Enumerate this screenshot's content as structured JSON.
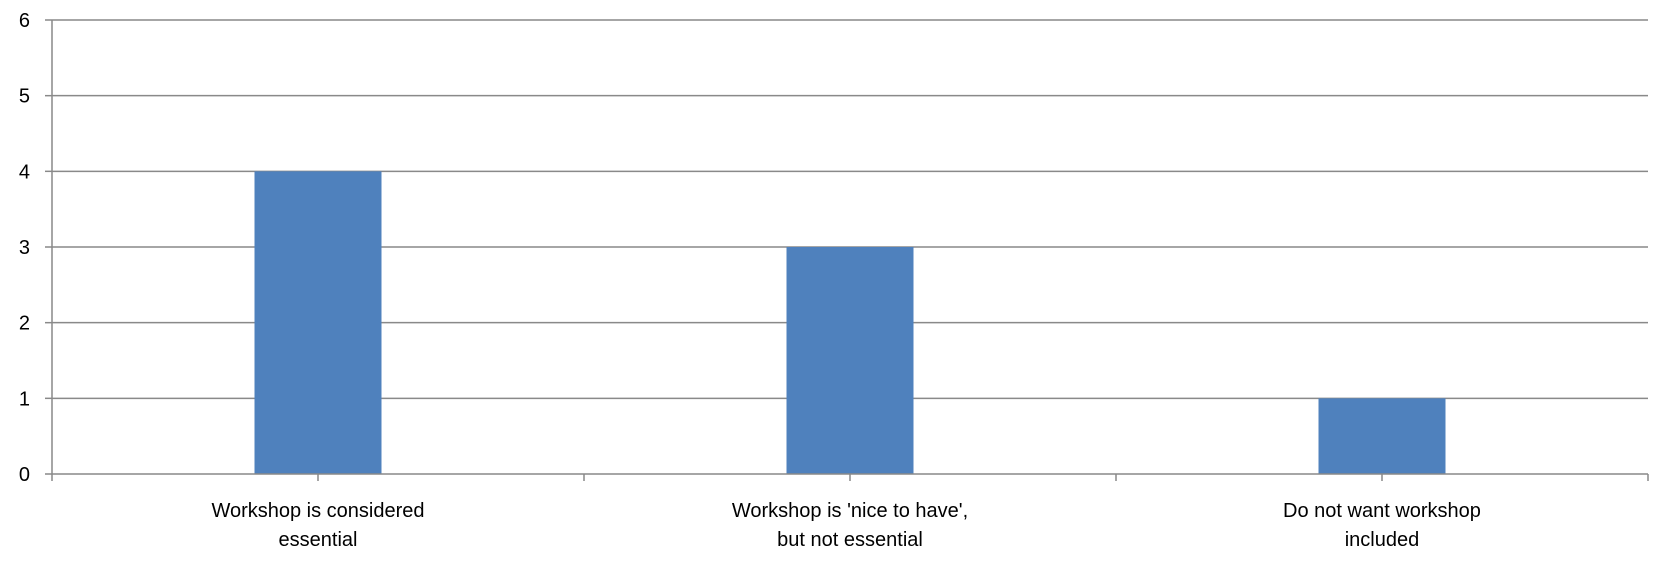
{
  "chart_data": {
    "type": "bar",
    "title": "",
    "xlabel": "",
    "ylabel": "",
    "categories": [
      [
        "Workshop is considered",
        "essential"
      ],
      [
        "Workshop is 'nice to have',",
        "but not essential"
      ],
      [
        "Do not want workshop",
        "included"
      ]
    ],
    "values": [
      4,
      3,
      1
    ],
    "ylim": [
      0,
      6
    ],
    "yticks": [
      "0",
      "1",
      "2",
      "3",
      "4",
      "5",
      "6"
    ],
    "grid": true,
    "legend": "none",
    "bar_color": "#4F81BD",
    "grid_color": "#898989",
    "axis_color": "#898989"
  }
}
